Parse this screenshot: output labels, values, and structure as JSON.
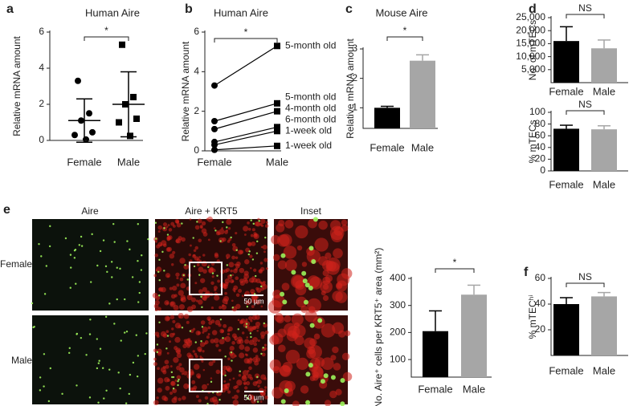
{
  "chart_data": [
    {
      "type": "dot",
      "panel": "a",
      "title": "Human Aire",
      "ylabel": "Relative mRNA amount",
      "categories": [
        "Female",
        "Male"
      ],
      "markers": [
        "circle",
        "square"
      ],
      "values": [
        [
          3.3,
          1.5,
          1.1,
          0.45,
          0.3,
          0.05
        ],
        [
          5.3,
          2.4,
          2.0,
          1.2,
          1.0,
          0.25
        ]
      ],
      "means": [
        1.1,
        2.0
      ],
      "errors": [
        1.2,
        1.8
      ],
      "hline": 0,
      "annotation": "*",
      "ylim": [
        0,
        6
      ],
      "yticks": [
        0,
        2,
        4,
        6
      ]
    },
    {
      "type": "line",
      "panel": "b",
      "title": "Human Aire",
      "ylabel": "Relative mRNA amount",
      "categories": [
        "Female",
        "Male"
      ],
      "markers": [
        "circle",
        "square"
      ],
      "lines": [
        {
          "values": [
            3.3,
            5.3
          ],
          "label": "5-month old"
        },
        {
          "values": [
            1.5,
            2.4
          ],
          "label": "5-month old"
        },
        {
          "values": [
            1.1,
            2.0
          ],
          "label": "4-month old"
        },
        {
          "values": [
            0.45,
            1.2
          ],
          "label": "6-month old"
        },
        {
          "values": [
            0.3,
            1.0
          ],
          "label": "1-week old"
        },
        {
          "values": [
            0.05,
            0.25
          ],
          "label": "1-week old"
        }
      ],
      "annotation": "*",
      "ylim": [
        0,
        6
      ],
      "yticks": [
        0,
        2,
        4,
        6
      ]
    },
    {
      "type": "bar",
      "panel": "c",
      "title": "Mouse Aire",
      "ylabel": "Relative mRNA amount",
      "categories": [
        "Female",
        "Male"
      ],
      "values": [
        1.0,
        2.6
      ],
      "errors": [
        0.05,
        0.2
      ],
      "colors": [
        "#000000",
        "#a6a6a6"
      ],
      "annotation": "*",
      "ylim": [
        0.3,
        3
      ],
      "yticks": [
        1,
        2,
        3
      ]
    },
    {
      "type": "bar",
      "panel": "d",
      "ylabel": "No. of mTECs",
      "categories": [
        "Female",
        "Male"
      ],
      "values": [
        16000,
        13200
      ],
      "errors": [
        5500,
        3200
      ],
      "colors": [
        "#000000",
        "#a6a6a6"
      ],
      "annotation": "NS",
      "ylim": [
        0,
        25000
      ],
      "yticks": [
        {
          "value": 5000,
          "label": "5,000"
        },
        {
          "value": 10000,
          "label": "10,000"
        },
        {
          "value": 15000,
          "label": "15,000"
        },
        {
          "value": 20000,
          "label": "20,000"
        },
        {
          "value": 25000,
          "label": "25,000"
        }
      ]
    },
    {
      "type": "bar",
      "ylabel": "% mTECs",
      "categories": [
        "Female",
        "Male"
      ],
      "values": [
        72,
        71
      ],
      "errors": [
        6,
        6
      ],
      "colors": [
        "#000000",
        "#a6a6a6"
      ],
      "annotation": "NS",
      "ylim": [
        0,
        100
      ],
      "yticks": [
        0,
        20,
        40,
        60,
        80,
        100
      ]
    },
    {
      "type": "bar",
      "ylabel": "No. Aire⁺ cells per KRT5⁺ area (mm²)",
      "categories": [
        "Female",
        "Male"
      ],
      "values": [
        205,
        340
      ],
      "errors": [
        75,
        35
      ],
      "colors": [
        "#000000",
        "#a6a6a6"
      ],
      "annotation": "*",
      "ylim": [
        35,
        400
      ],
      "yticks": [
        100,
        200,
        300,
        400
      ]
    },
    {
      "type": "bar",
      "panel": "f",
      "ylabel": "% mTECʰⁱ",
      "categories": [
        "Female",
        "Male"
      ],
      "values": [
        40,
        46
      ],
      "errors": [
        5,
        3
      ],
      "colors": [
        "#000000",
        "#a6a6a6"
      ],
      "annotation": "NS",
      "ylim": [
        0,
        60
      ],
      "yticks": [
        20,
        40,
        60
      ]
    }
  ],
  "micrographs": {
    "panel": "e",
    "columns": [
      "Aire",
      "Aire + KRT5",
      "Inset"
    ],
    "rows": [
      "Female",
      "Male"
    ],
    "scale_bar": "50 µm"
  }
}
